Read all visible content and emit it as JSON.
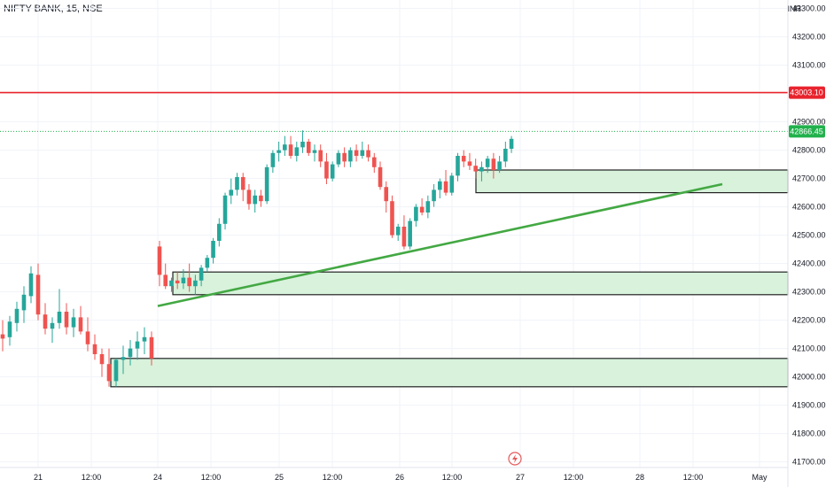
{
  "header": {
    "symbol_title": "NIFTY BANK, 15, NSE"
  },
  "price_axis": {
    "currency": "INR",
    "ticks": [
      "43300.00",
      "43200.00",
      "43100.00",
      "42900.00",
      "42800.00",
      "42700.00",
      "42600.00",
      "42500.00",
      "42400.00",
      "42300.00",
      "42200.00",
      "42100.00",
      "42000.00",
      "41900.00",
      "41800.00",
      "41700.00"
    ],
    "resistance_label": "43003.10",
    "last_price_label": "42866.45"
  },
  "time_axis": {
    "labels": [
      "21",
      "12:00",
      "24",
      "12:00",
      "25",
      "12:00",
      "26",
      "12:00",
      "27",
      "12:00",
      "28",
      "12:00",
      "May"
    ]
  },
  "colors": {
    "up": "#26a69a",
    "down": "#ef5350",
    "zone_fill": "#d8f2dc",
    "trendline": "#43a843",
    "resistance": "#e8232d",
    "last_price": "#22b14c"
  },
  "icons": {
    "marker": "lightning-icon"
  },
  "chart_data": {
    "type": "candlestick",
    "title": "NIFTY BANK, 15, NSE",
    "ylim": [
      41680,
      43330
    ],
    "resistance_level": 43003.1,
    "last_price": 42866.45,
    "zones": [
      {
        "low": 42650,
        "high": 42730
      },
      {
        "low": 42290,
        "high": 42370
      },
      {
        "low": 41965,
        "high": 42065
      }
    ],
    "trendline": [
      42250,
      42680
    ],
    "candles": [
      [
        42150,
        42200,
        42090,
        42135
      ],
      [
        42140,
        42215,
        42110,
        42195
      ],
      [
        42190,
        42265,
        42160,
        42240
      ],
      [
        42235,
        42320,
        42190,
        42290
      ],
      [
        42285,
        42390,
        42260,
        42365
      ],
      [
        42360,
        42400,
        42200,
        42220
      ],
      [
        42220,
        42260,
        42150,
        42170
      ],
      [
        42170,
        42210,
        42120,
        42190
      ],
      [
        42190,
        42310,
        42170,
        42230
      ],
      [
        42230,
        42260,
        42150,
        42175
      ],
      [
        42175,
        42240,
        42140,
        42210
      ],
      [
        42210,
        42250,
        42150,
        42160
      ],
      [
        42160,
        42210,
        42090,
        42115
      ],
      [
        42115,
        42150,
        42060,
        42080
      ],
      [
        42080,
        42100,
        42000,
        42045
      ],
      [
        42045,
        42100,
        41965,
        41985
      ],
      [
        41985,
        42065,
        41965,
        42060
      ],
      [
        42060,
        42110,
        42010,
        42070
      ],
      [
        42070,
        42130,
        42040,
        42100
      ],
      [
        42100,
        42160,
        42060,
        42125
      ],
      [
        42125,
        42175,
        42080,
        42140
      ],
      [
        42140,
        42160,
        42040,
        42065
      ],
      [
        42460,
        42480,
        42320,
        42360
      ],
      [
        42360,
        42400,
        42310,
        42320
      ],
      [
        42320,
        42350,
        42300,
        42340
      ],
      [
        42340,
        42370,
        42310,
        42330
      ],
      [
        42330,
        42380,
        42310,
        42350
      ],
      [
        42350,
        42400,
        42300,
        42320
      ],
      [
        42320,
        42360,
        42290,
        42340
      ],
      [
        42340,
        42395,
        42320,
        42385
      ],
      [
        42385,
        42430,
        42370,
        42420
      ],
      [
        42420,
        42490,
        42400,
        42480
      ],
      [
        42480,
        42560,
        42460,
        42540
      ],
      [
        42540,
        42650,
        42520,
        42640
      ],
      [
        42640,
        42700,
        42610,
        42660
      ],
      [
        42660,
        42720,
        42640,
        42705
      ],
      [
        42705,
        42720,
        42620,
        42660
      ],
      [
        42660,
        42680,
        42590,
        42610
      ],
      [
        42610,
        42660,
        42580,
        42640
      ],
      [
        42640,
        42660,
        42600,
        42620
      ],
      [
        42620,
        42750,
        42610,
        42740
      ],
      [
        42740,
        42800,
        42720,
        42790
      ],
      [
        42790,
        42830,
        42760,
        42800
      ],
      [
        42800,
        42850,
        42780,
        42820
      ],
      [
        42820,
        42850,
        42770,
        42780
      ],
      [
        42780,
        42830,
        42760,
        42810
      ],
      [
        42810,
        42870,
        42790,
        42830
      ],
      [
        42830,
        42840,
        42780,
        42790
      ],
      [
        42790,
        42820,
        42760,
        42800
      ],
      [
        42800,
        42820,
        42740,
        42760
      ],
      [
        42760,
        42790,
        42680,
        42700
      ],
      [
        42700,
        42760,
        42690,
        42750
      ],
      [
        42750,
        42800,
        42740,
        42790
      ],
      [
        42790,
        42810,
        42740,
        42760
      ],
      [
        42760,
        42810,
        42740,
        42800
      ],
      [
        42800,
        42820,
        42760,
        42780
      ],
      [
        42780,
        42830,
        42770,
        42800
      ],
      [
        42800,
        42820,
        42760,
        42775
      ],
      [
        42775,
        42790,
        42720,
        42740
      ],
      [
        42740,
        42760,
        42660,
        42670
      ],
      [
        42670,
        42690,
        42580,
        42620
      ],
      [
        42620,
        42640,
        42490,
        42500
      ],
      [
        42500,
        42540,
        42480,
        42530
      ],
      [
        42530,
        42570,
        42450,
        42460
      ],
      [
        42460,
        42560,
        42450,
        42550
      ],
      [
        42550,
        42610,
        42530,
        42600
      ],
      [
        42600,
        42630,
        42570,
        42580
      ],
      [
        42580,
        42640,
        42560,
        42620
      ],
      [
        42620,
        42680,
        42600,
        42660
      ],
      [
        42660,
        42700,
        42630,
        42690
      ],
      [
        42690,
        42730,
        42640,
        42650
      ],
      [
        42650,
        42720,
        42640,
        42710
      ],
      [
        42710,
        42790,
        42690,
        42780
      ],
      [
        42780,
        42800,
        42740,
        42760
      ],
      [
        42760,
        42790,
        42730,
        42745
      ],
      [
        42745,
        42770,
        42700,
        42725
      ],
      [
        42725,
        42760,
        42690,
        42740
      ],
      [
        42740,
        42780,
        42720,
        42770
      ],
      [
        42770,
        42790,
        42700,
        42730
      ],
      [
        42730,
        42780,
        42720,
        42760
      ],
      [
        42760,
        42830,
        42740,
        42805
      ],
      [
        42805,
        42850,
        42790,
        42840
      ]
    ]
  }
}
